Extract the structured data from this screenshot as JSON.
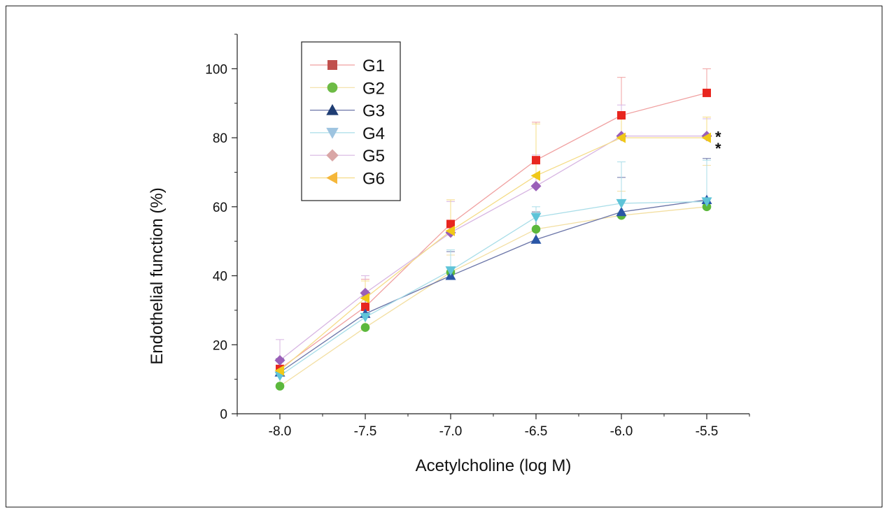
{
  "chart_data": {
    "type": "line",
    "xlabel": "Acetylcholine (log M)",
    "ylabel": "Endothelial function  (%)",
    "x": [
      -8.0,
      -7.5,
      -7.0,
      -6.5,
      -6.0,
      -5.5
    ],
    "x_tick_labels": [
      "-8.0",
      "-7.5",
      "-7.0",
      "-6.5",
      "-6.0",
      "-5.5"
    ],
    "xlim": [
      -8.25,
      -5.25
    ],
    "y_ticks": [
      0,
      20,
      40,
      60,
      80,
      100
    ],
    "y_tick_labels": [
      "0",
      "20",
      "40",
      "60",
      "80",
      "100"
    ],
    "ylim": [
      0,
      110
    ],
    "legend_position": "top-left",
    "series": [
      {
        "name": "G1",
        "marker": "square",
        "legend_color": "#c0504d",
        "marker_color": "#e8261f",
        "line_color": "#f0a0a0",
        "values": [
          13,
          31,
          55,
          73.5,
          86.5,
          93
        ],
        "errors": [
          3,
          8,
          7,
          11,
          11,
          7
        ]
      },
      {
        "name": "G2",
        "marker": "circle",
        "legend_color": "#6dbb45",
        "marker_color": "#5cb83c",
        "line_color": "#f3dfa2",
        "values": [
          8,
          25,
          41,
          53.5,
          57.5,
          60
        ],
        "errors": [
          3,
          4,
          5,
          5,
          7,
          12
        ]
      },
      {
        "name": "G3",
        "marker": "triangle-up",
        "legend_color": "#1f3d73",
        "marker_color": "#2a56a6",
        "line_color": "#6b75a8",
        "values": [
          12,
          29,
          40,
          50.5,
          58.5,
          62
        ],
        "errors": [
          4,
          5,
          7,
          8,
          10,
          12
        ]
      },
      {
        "name": "G4",
        "marker": "triangle-down",
        "legend_color": "#9ec4e0",
        "marker_color": "#5fc4d8",
        "line_color": "#a8dde8",
        "values": [
          11,
          28,
          41.5,
          57,
          61,
          61.5
        ],
        "errors": [
          4,
          4,
          6,
          3,
          12,
          12
        ]
      },
      {
        "name": "G5",
        "marker": "diamond",
        "legend_color": "#d9a6a6",
        "marker_color": "#9a5fb8",
        "line_color": "#d7b5e2",
        "values": [
          15.5,
          35,
          52.5,
          66,
          80.5,
          80.5
        ],
        "errors": [
          6,
          5,
          9,
          9,
          9,
          5
        ]
      },
      {
        "name": "G6",
        "marker": "triangle-left",
        "legend_color": "#f5b73a",
        "marker_color": "#f0c818",
        "line_color": "#f5dc86",
        "values": [
          12.5,
          33.5,
          53,
          69,
          80,
          80
        ],
        "errors": [
          3,
          5,
          9,
          15,
          6,
          6
        ]
      }
    ],
    "annotations": [
      {
        "text": "*",
        "x": -5.5,
        "y": 80.5
      },
      {
        "text": "*",
        "x": -5.5,
        "y": 78
      }
    ]
  }
}
